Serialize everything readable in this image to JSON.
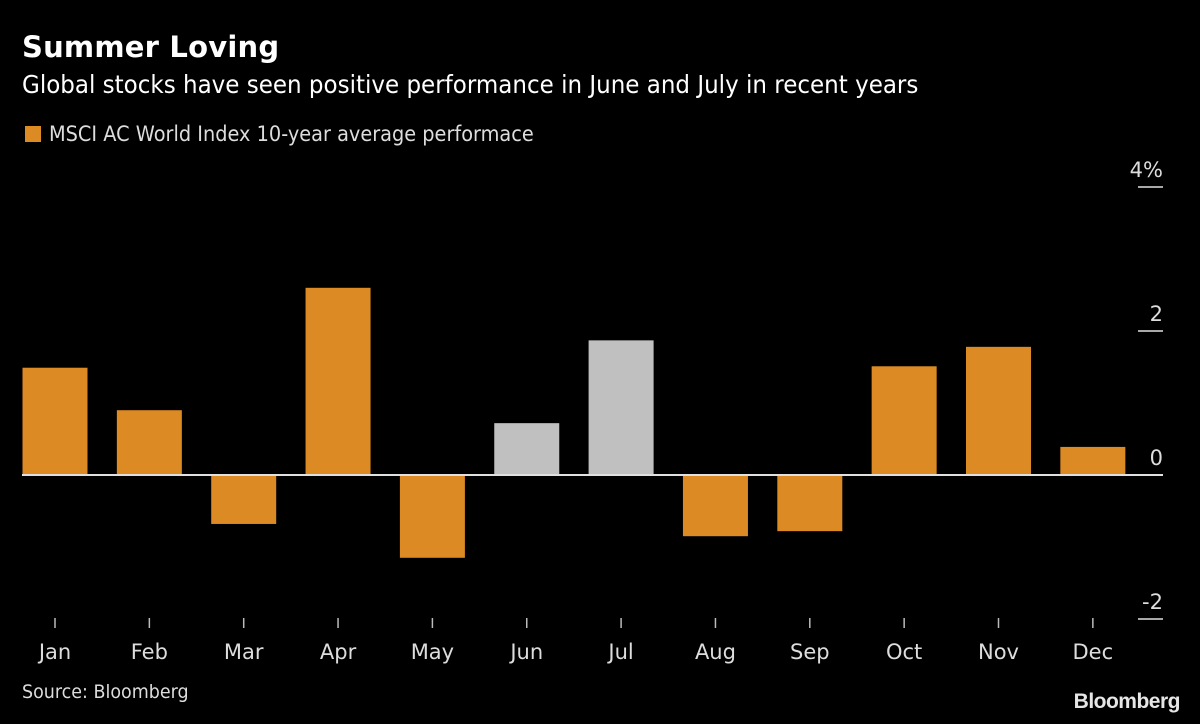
{
  "chart_data": {
    "type": "bar",
    "title": "Summer Loving",
    "subtitle": "Global stocks have seen positive performance in June and July in recent years",
    "legend": [
      {
        "label": "MSCI AC World Index 10-year average performace",
        "color": "#dc8a23"
      }
    ],
    "legend_placement": "top-left",
    "categories": [
      "Jan",
      "Feb",
      "Mar",
      "Apr",
      "May",
      "Jun",
      "Jul",
      "Aug",
      "Sep",
      "Oct",
      "Nov",
      "Dec"
    ],
    "values": [
      1.49,
      0.9,
      -0.68,
      2.6,
      -1.15,
      0.72,
      1.87,
      -0.85,
      -0.78,
      1.51,
      1.78,
      0.39
    ],
    "highlighted": [
      "Jun",
      "Jul"
    ],
    "colors": {
      "default": "#dc8a23",
      "highlight": "#c0c0c0",
      "background": "#000000",
      "axis": "#e0e0e0"
    },
    "xlabel": "",
    "ylabel": "",
    "ylim": [
      -2,
      4
    ],
    "yticks": [
      {
        "value": 4,
        "label": "4%"
      },
      {
        "value": 2,
        "label": "2"
      },
      {
        "value": 0,
        "label": "0"
      },
      {
        "value": -2,
        "label": "-2"
      }
    ],
    "yaxis_side": "right",
    "grid": false
  },
  "footer": {
    "source": "Source: Bloomberg",
    "brand": "Bloomberg"
  }
}
